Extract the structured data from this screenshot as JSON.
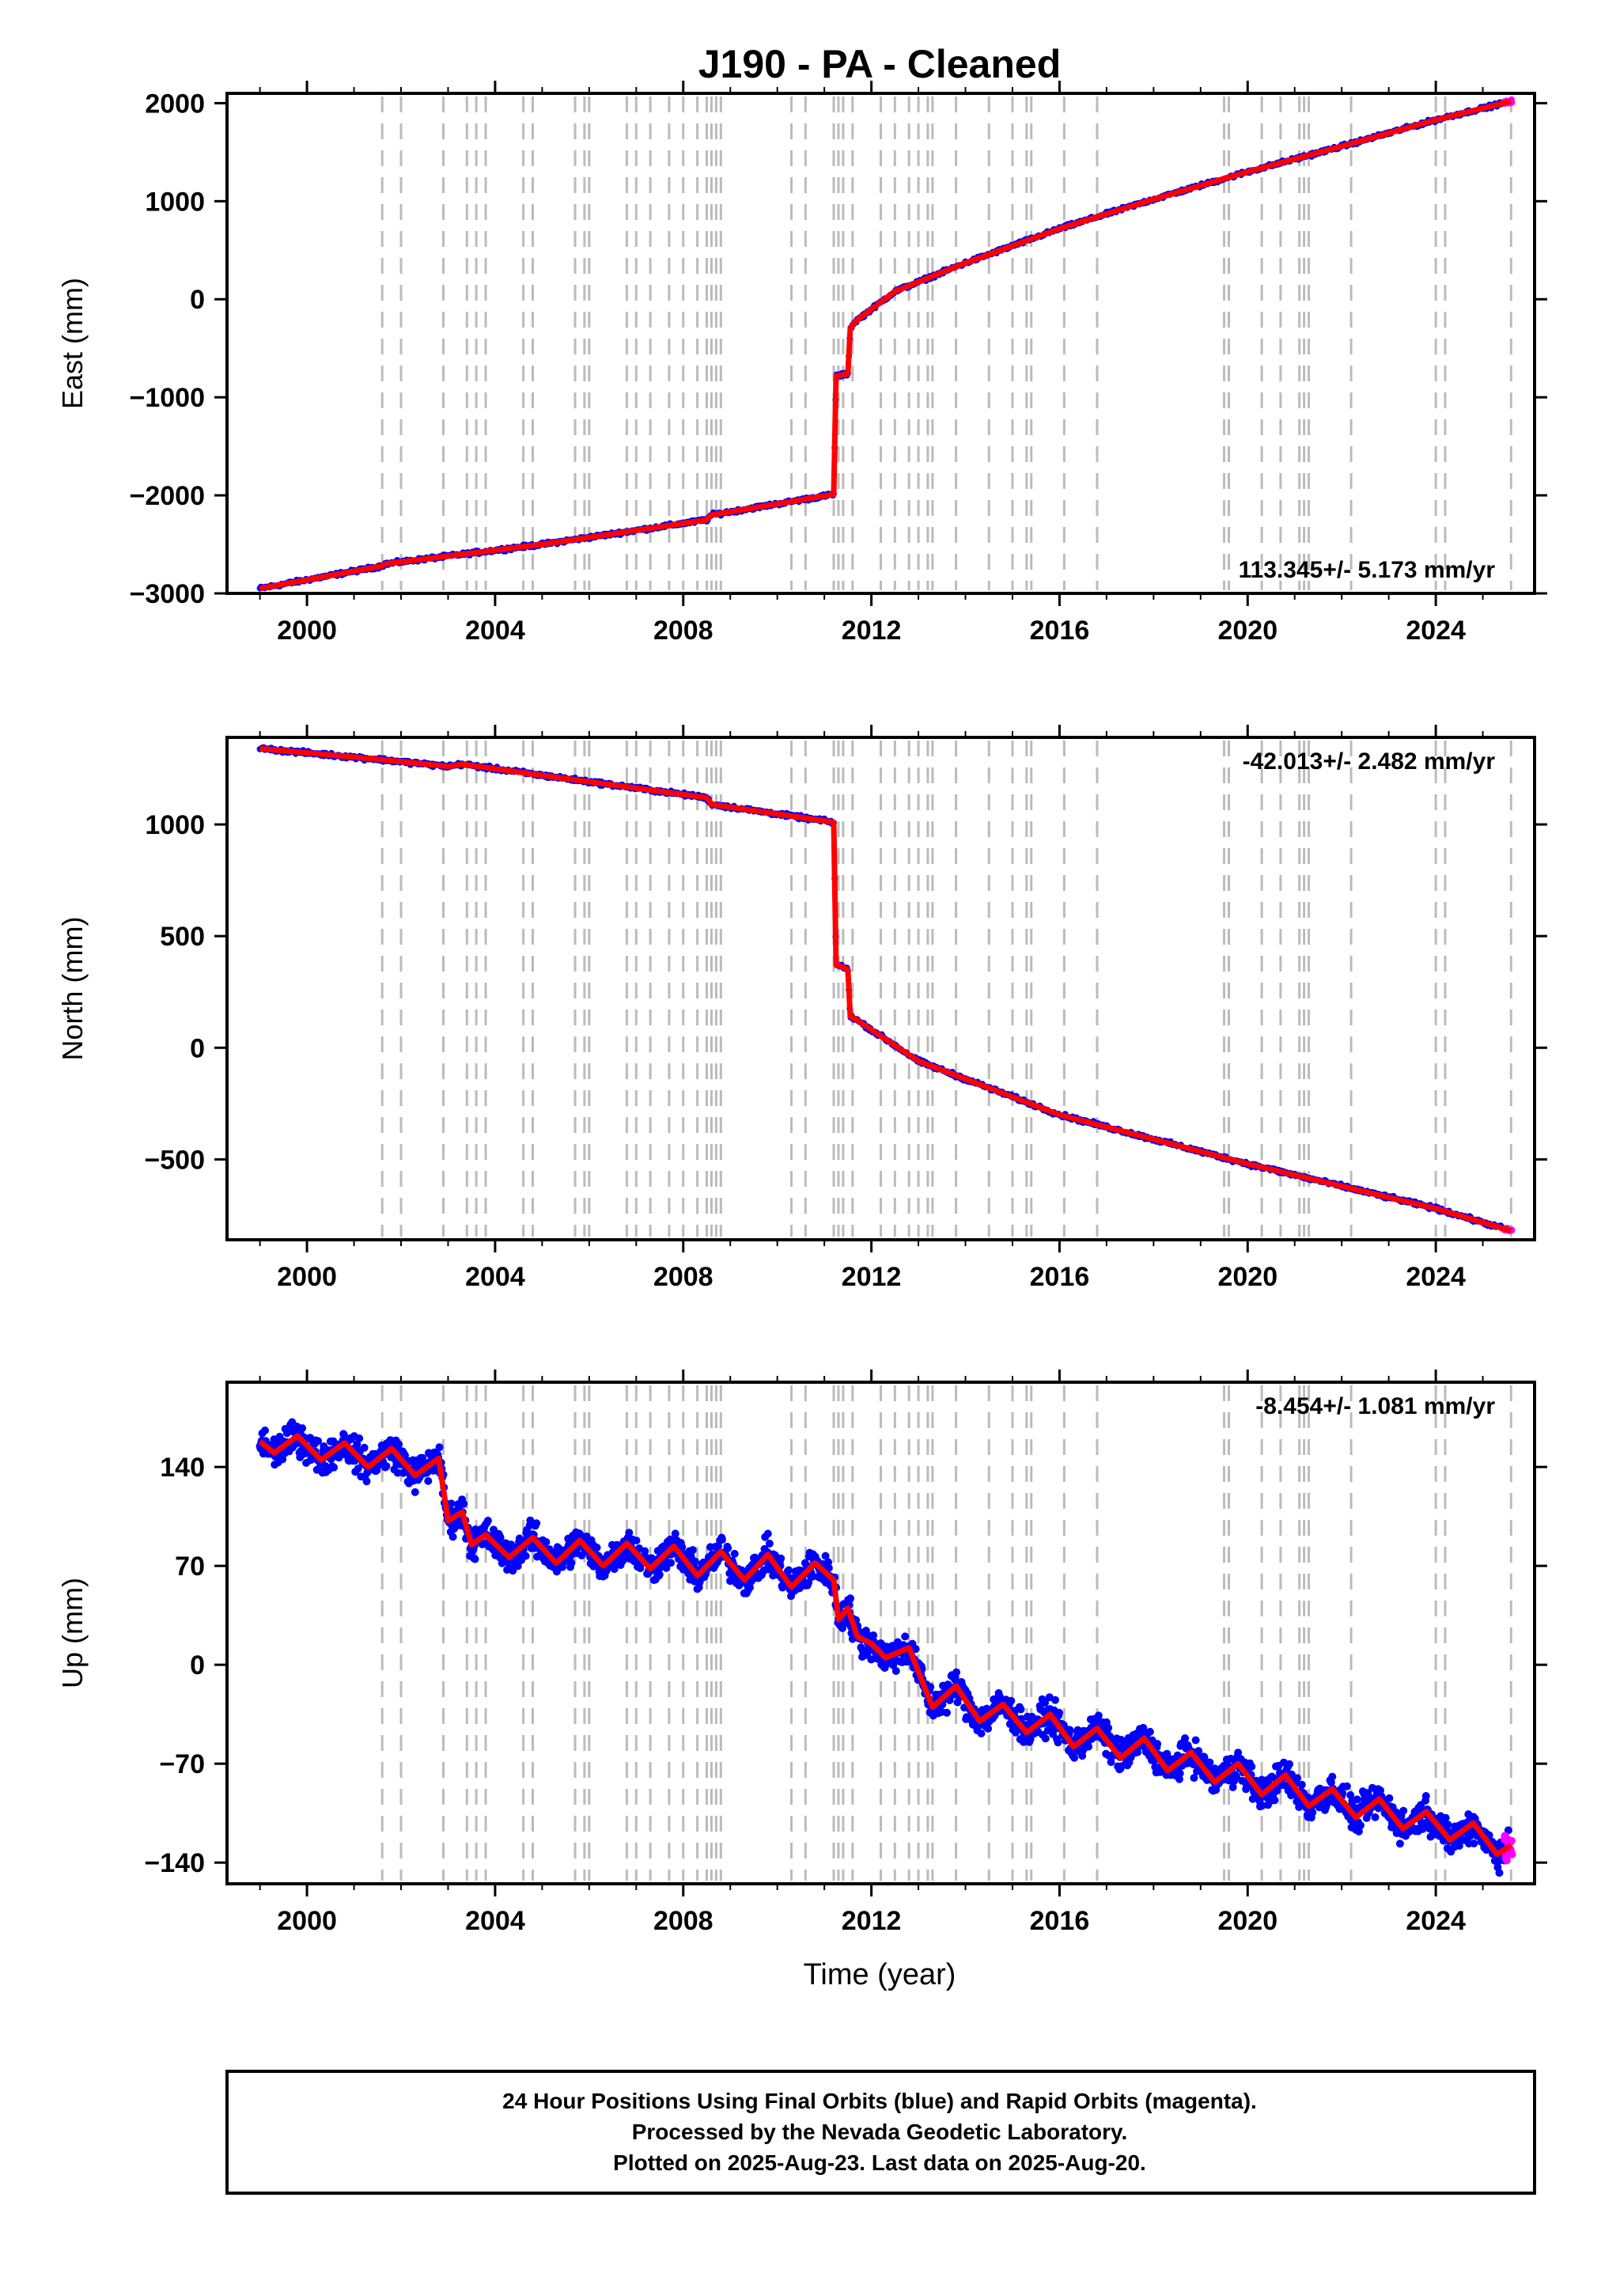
{
  "title": "J190  - PA - Cleaned",
  "xlabel": "Time (year)",
  "footer": {
    "line1": "24 Hour Positions Using Final Orbits (blue) and Rapid Orbits (magenta).",
    "line2": "Processed by the Nevada Geodetic Laboratory.",
    "line3": "Plotted on 2025-Aug-23. Last data on 2025-Aug-20."
  },
  "colors": {
    "final_orbits": "#0000ff",
    "rapid_orbits": "#ff00ff",
    "model": "#ff0000",
    "event_lines": "#bbbbbb"
  },
  "chart_data": [
    {
      "type": "scatter",
      "name": "east",
      "ylabel": "East (mm)",
      "rate_label": "113.345+/- 5.173 mm/yr",
      "xlim": [
        1998.3,
        2026.1
      ],
      "ylim": [
        -3000,
        2100
      ],
      "x_ticks": [
        2000,
        2004,
        2008,
        2012,
        2016,
        2020,
        2024
      ],
      "y_ticks": [
        -3000,
        -2000,
        -1000,
        0,
        1000,
        2000
      ],
      "y_tick_labels": [
        "−3000",
        "−2000",
        "−1000",
        "0",
        "1000",
        "2000"
      ],
      "series": [
        {
          "name": "model",
          "x": [
            1999.0,
            2001.6,
            2001.65,
            2005.0,
            2008.5,
            2008.6,
            2011.2,
            2011.25,
            2011.3,
            2011.5,
            2011.55,
            2011.65,
            2012.5,
            2014.0,
            2016.0,
            2018.0,
            2020.0,
            2022.0,
            2024.0,
            2025.6
          ],
          "y": [
            -2950,
            -2720,
            -2700,
            -2500,
            -2250,
            -2200,
            -1990,
            -780,
            -780,
            -760,
            -300,
            -230,
            80,
            370,
            720,
            1020,
            1300,
            1560,
            1830,
            2020
          ]
        }
      ]
    },
    {
      "type": "scatter",
      "name": "north",
      "ylabel": "North (mm)",
      "rate_label": "-42.013+/- 2.482 mm/yr",
      "xlim": [
        1998.3,
        2026.1
      ],
      "ylim": [
        -860,
        1390
      ],
      "x_ticks": [
        2000,
        2004,
        2008,
        2012,
        2016,
        2020,
        2024
      ],
      "y_ticks": [
        -500,
        0,
        500,
        1000
      ],
      "y_tick_labels": [
        "−500",
        "0",
        "500",
        "1000"
      ],
      "series": [
        {
          "name": "model",
          "x": [
            1999.0,
            2001.6,
            2003.0,
            2003.3,
            2005.0,
            2008.5,
            2008.6,
            2011.2,
            2011.25,
            2011.3,
            2011.5,
            2011.55,
            2011.65,
            2013.0,
            2016.0,
            2020.0,
            2022.0,
            2024.0,
            2025.6
          ],
          "y": [
            1340,
            1290,
            1260,
            1270,
            1220,
            1120,
            1090,
            1010,
            370,
            370,
            350,
            140,
            130,
            -60,
            -300,
            -520,
            -620,
            -720,
            -820
          ]
        }
      ]
    },
    {
      "type": "scatter",
      "name": "up",
      "ylabel": "Up (mm)",
      "rate_label": "-8.454+/- 1.081 mm/yr",
      "xlim": [
        1998.3,
        2026.1
      ],
      "ylim": [
        -155,
        200
      ],
      "x_ticks": [
        2000,
        2004,
        2008,
        2012,
        2016,
        2020,
        2024
      ],
      "y_ticks": [
        -140,
        -70,
        0,
        70,
        140
      ],
      "y_tick_labels": [
        "−140",
        "−70",
        "0",
        "70",
        "140"
      ],
      "series": [
        {
          "name": "model",
          "x": [
            1999.0,
            1999.3,
            1999.8,
            2000.3,
            2000.8,
            2001.3,
            2001.8,
            2002.3,
            2002.8,
            2003.0,
            2003.3,
            2003.5,
            2003.8,
            2004.3,
            2004.8,
            2005.3,
            2005.8,
            2006.3,
            2006.8,
            2007.3,
            2007.8,
            2008.3,
            2008.8,
            2009.3,
            2009.8,
            2010.3,
            2010.8,
            2011.2,
            2011.3,
            2011.5,
            2011.7,
            2012.0,
            2012.3,
            2012.8,
            2013.3,
            2013.8,
            2014.3,
            2014.8,
            2015.3,
            2015.8,
            2016.3,
            2016.8,
            2017.3,
            2017.8,
            2018.3,
            2018.8,
            2019.3,
            2019.8,
            2020.3,
            2020.8,
            2021.3,
            2021.8,
            2022.3,
            2022.8,
            2023.3,
            2023.8,
            2024.3,
            2024.8,
            2025.3,
            2025.6
          ],
          "y": [
            158,
            150,
            162,
            145,
            157,
            140,
            153,
            134,
            146,
            102,
            108,
            85,
            92,
            76,
            90,
            72,
            88,
            70,
            86,
            68,
            84,
            63,
            80,
            60,
            78,
            55,
            72,
            60,
            32,
            40,
            20,
            15,
            5,
            12,
            -30,
            -15,
            -40,
            -28,
            -48,
            -35,
            -58,
            -45,
            -66,
            -52,
            -75,
            -62,
            -83,
            -70,
            -92,
            -78,
            -100,
            -88,
            -108,
            -95,
            -116,
            -104,
            -124,
            -112,
            -134,
            -128
          ]
        }
      ]
    }
  ]
}
